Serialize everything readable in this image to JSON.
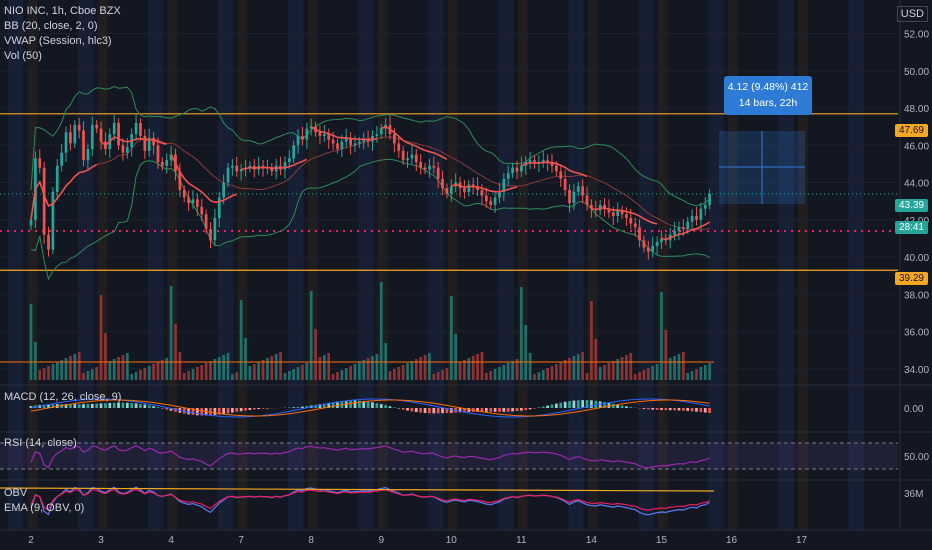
{
  "header": {
    "symbol_line": "NIO INC, 1h, Cboe BZX",
    "currency": "USD"
  },
  "indicators": {
    "bb": "BB (20, close, 2, 0)",
    "vwap": "VWAP (Session, hlc3)",
    "vol": "Vol (50)",
    "macd": "MACD (12, 26, close, 9)",
    "rsi": "RSI (14, close)",
    "obv": "OBV",
    "ema": "EMA (9, OBV, 0)"
  },
  "measure": {
    "line1": "4.12 (9.48%) 412",
    "line2": "14 bars, 22h"
  },
  "badges": {
    "upper": "47.69",
    "price": "43.39",
    "timer": "28:41",
    "lower": "39.29"
  },
  "colors": {
    "background": "#131722",
    "horizontal_line": "#f5a623",
    "price_badge": "#26a69a",
    "up": "#26a69a",
    "down": "#ef5350",
    "vwap": "#ef5350",
    "bb": "#2e8b57",
    "macd": "#2962ff",
    "signal": "#ff6d00",
    "rsi": "#9c27b0",
    "measure_box": "#2e7bd6",
    "support_dotted": "#e91e63"
  },
  "chart_data": {
    "type": "candlestick",
    "price_axis_ticks": [
      "52.00",
      "50.00",
      "48.00",
      "46.00",
      "44.00",
      "42.00",
      "40.00",
      "38.00",
      "36.00",
      "34.00"
    ],
    "macd_axis_ticks": [
      "0.00"
    ],
    "rsi_axis_ticks": [
      "50.00"
    ],
    "obv_axis_ticks": [
      "36M"
    ],
    "x_ticks": [
      "2",
      "3",
      "4",
      "7",
      "8",
      "9",
      "10",
      "11",
      "14",
      "15",
      "16",
      "17"
    ],
    "ylim": [
      33.4,
      53.8
    ],
    "horizontal_levels": {
      "resistance": 47.69,
      "support": 39.29,
      "dotted": 41.4
    },
    "last_price": 43.39,
    "bars_per_day": 16,
    "bars_to_last": 156,
    "close": [
      42.0,
      45.3,
      44.8,
      41.2,
      40.4,
      43.5,
      44.9,
      45.6,
      46.7,
      46.1,
      47.1,
      46.8,
      45.2,
      45.8,
      47.1,
      46.9,
      46.2,
      45.8,
      46.6,
      47.2,
      46.0,
      45.6,
      45.9,
      46.6,
      47.2,
      46.5,
      45.7,
      46.4,
      46.0,
      45.1,
      44.9,
      45.2,
      45.5,
      44.6,
      43.6,
      43.2,
      42.9,
      43.1,
      42.7,
      42.3,
      41.5,
      40.9,
      42.1,
      43.2,
      44.0,
      44.8,
      44.9,
      44.6,
      44.7,
      44.8,
      44.9,
      44.7,
      44.9,
      44.8,
      44.8,
      44.6,
      44.9,
      44.7,
      45.1,
      45.3,
      46.0,
      46.5,
      46.3,
      46.9,
      47.0,
      46.7,
      46.5,
      46.6,
      46.3,
      46.1,
      45.8,
      46.2,
      46.4,
      46.0,
      46.1,
      46.2,
      46.3,
      46.2,
      46.5,
      46.6,
      46.9,
      47.1,
      46.6,
      46.1,
      45.7,
      45.2,
      45.3,
      45.5,
      45.1,
      44.8,
      44.7,
      44.9,
      44.8,
      44.2,
      43.7,
      43.4,
      43.8,
      44.0,
      43.7,
      43.5,
      43.9,
      43.8,
      43.6,
      43.3,
      43.0,
      42.8,
      43.2,
      43.5,
      44.2,
      44.5,
      44.8,
      44.6,
      44.9,
      45.1,
      45.2,
      45.0,
      45.1,
      45.2,
      45.1,
      44.9,
      44.6,
      44.2,
      43.6,
      42.9,
      43.5,
      43.8,
      43.3,
      42.8,
      42.6,
      42.5,
      42.8,
      42.6,
      42.4,
      42.2,
      42.5,
      42.3,
      42.1,
      41.8,
      41.6,
      40.9,
      40.5,
      40.3,
      40.6,
      40.8,
      41.0,
      40.9,
      41.2,
      41.4,
      41.6,
      41.5,
      41.9,
      42.2,
      42.0,
      42.6,
      42.8,
      43.39
    ]
  }
}
